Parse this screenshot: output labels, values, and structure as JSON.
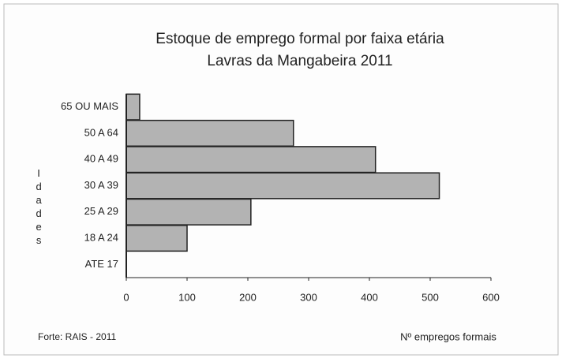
{
  "chart_data": {
    "type": "barh",
    "title": "Estoque de emprego formal por faixa etária",
    "subtitle": "Lavras da Mangabeira 2011",
    "y_label": "Idades",
    "x_label": "Nº empregos formais",
    "source": "Forte: RAIS - 2011",
    "categories": [
      "65 OU MAIS",
      "50 A 64",
      "40 A 49",
      "30 A 39",
      "25 A 29",
      "18 A 24",
      "ATE 17"
    ],
    "values": [
      22,
      275,
      410,
      515,
      205,
      100,
      0
    ],
    "color": "#b3b3b3",
    "xlim": [
      0,
      600
    ],
    "xticks": [
      0,
      100,
      200,
      300,
      400,
      500,
      600
    ]
  }
}
